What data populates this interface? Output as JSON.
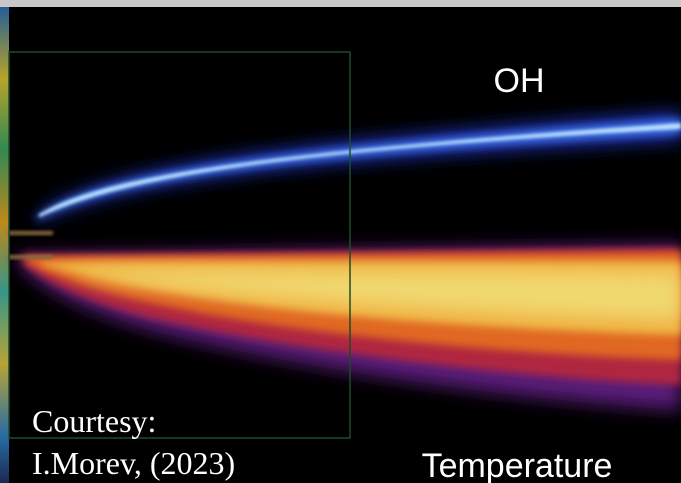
{
  "labels": {
    "oh": "OH",
    "temperature": "Temperature",
    "courtesy": "Courtesy:",
    "credit": "I.Morev, (2023)"
  }
}
